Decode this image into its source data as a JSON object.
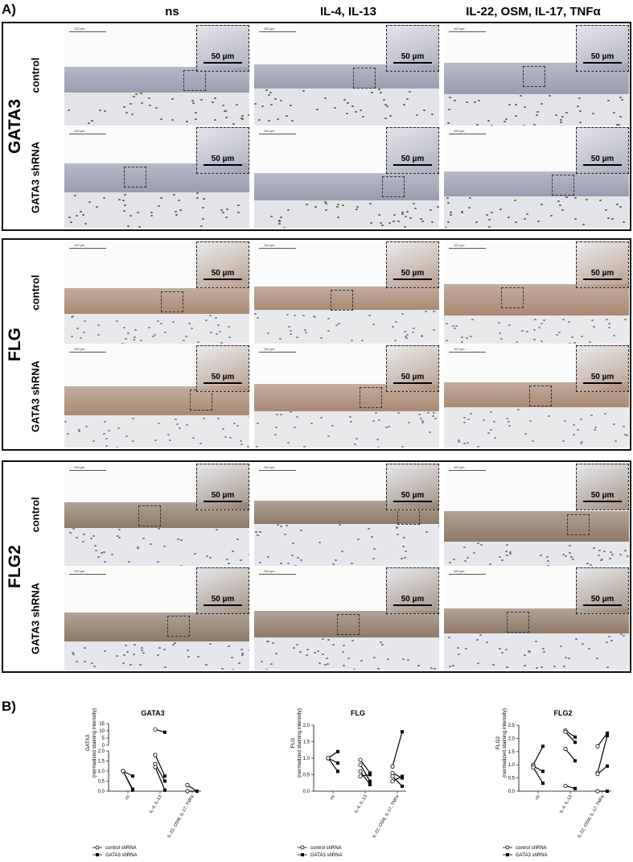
{
  "figure": {
    "panel_a_label": "A)",
    "panel_b_label": "B)",
    "columns": [
      "ns",
      "IL-4, IL-13",
      "IL-22, OSM, IL-17, TNFα"
    ],
    "rows": [
      "control",
      "GATA3 shRNA"
    ],
    "markers": [
      "GATA3",
      "FLG",
      "FLG2"
    ],
    "inset_scale": "50 µm",
    "overview_scale": "100 µm",
    "stain_colors": {
      "GATA3": {
        "strat": "#9a9cb0",
        "derm": "#e3e4ea",
        "nuc": "#6b6040"
      },
      "FLG": {
        "strat": "#a98a72",
        "derm": "#e9e9ec",
        "nuc": "#7d8099"
      },
      "FLG2": {
        "strat": "#8f7a66",
        "derm": "#e6e7ec",
        "nuc": "#6f7288"
      }
    }
  },
  "chart_data": [
    {
      "type": "scatter",
      "title": "GATA3",
      "ylabel": "GATA3 (normalized staining intensity)",
      "categories": [
        "ns",
        "IL-4, IL-13",
        "IL-22, OSM, IL-17, TNFα"
      ],
      "broken_axis": true,
      "ylim_lower": [
        0,
        2.0
      ],
      "yticks_lower": [
        "0.0",
        "0.5",
        "1.0",
        "1.5",
        "2.0"
      ],
      "ylim_upper": [
        0,
        15
      ],
      "yticks_upper": [
        "0",
        "5",
        "10",
        "15"
      ],
      "pairs": [
        {
          "category": "ns",
          "control": 1.0,
          "gata3": 0.75
        },
        {
          "category": "ns",
          "control": 1.0,
          "gata3": 0.1
        },
        {
          "category": "ns",
          "control": 1.0,
          "gata3": 0.05
        },
        {
          "category": "IL-4, IL-13",
          "control": 11.0,
          "gata3": 9.0
        },
        {
          "category": "IL-4, IL-13",
          "control": 1.8,
          "gata3": 0.75
        },
        {
          "category": "IL-4, IL-13",
          "control": 1.35,
          "gata3": 0.5
        },
        {
          "category": "IL-4, IL-13",
          "control": 1.2,
          "gata3": 0.05
        },
        {
          "category": "IL-22, OSM, IL-17, TNFα",
          "control": 0.3,
          "gata3": 0.0
        },
        {
          "category": "IL-22, OSM, IL-17, TNFα",
          "control": 0.0,
          "gata3": 0.0
        }
      ],
      "legend": [
        "control shRNA",
        "GATA3 shRNA"
      ]
    },
    {
      "type": "scatter",
      "title": "FLG",
      "ylabel": "FLG (normalized staining intensity)",
      "categories": [
        "ns",
        "IL-4, IL-13",
        "IL-22, OSM, IL-17, TNFα"
      ],
      "ylim": [
        0,
        2.0
      ],
      "yticks": [
        "0.0",
        "0.5",
        "1.0",
        "1.5",
        "2.0"
      ],
      "pairs": [
        {
          "category": "ns",
          "control": 1.0,
          "gata3": 1.2
        },
        {
          "category": "ns",
          "control": 1.0,
          "gata3": 0.85
        },
        {
          "category": "ns",
          "control": 1.0,
          "gata3": 0.6
        },
        {
          "category": "IL-4, IL-13",
          "control": 0.95,
          "gata3": 0.55
        },
        {
          "category": "IL-4, IL-13",
          "control": 0.8,
          "gata3": 0.3
        },
        {
          "category": "IL-4, IL-13",
          "control": 0.6,
          "gata3": 0.2
        },
        {
          "category": "IL-4, IL-13",
          "control": 0.45,
          "gata3": 0.5
        },
        {
          "category": "IL-22, OSM, IL-17, TNFα",
          "control": 0.75,
          "gata3": 1.8
        },
        {
          "category": "IL-22, OSM, IL-17, TNFα",
          "control": 0.55,
          "gata3": 0.4
        },
        {
          "category": "IL-22, OSM, IL-17, TNFα",
          "control": 0.45,
          "gata3": 0.15
        },
        {
          "category": "IL-22, OSM, IL-17, TNFα",
          "control": 0.3,
          "gata3": 0.45
        }
      ],
      "legend": [
        "control shRNA",
        "GATA3 shRNA"
      ]
    },
    {
      "type": "scatter",
      "title": "FLG2",
      "ylabel": "FLG2 (normalized staining intensity)",
      "categories": [
        "ns",
        "IL-4, IL-13",
        "IL-22, OSM, IL-17, TNFα"
      ],
      "ylim": [
        0,
        2.5
      ],
      "yticks": [
        "0.0",
        "0.5",
        "1.0",
        "1.5",
        "2.0",
        "2.5"
      ],
      "pairs": [
        {
          "category": "ns",
          "control": 1.0,
          "gata3": 1.7
        },
        {
          "category": "ns",
          "control": 0.95,
          "gata3": 0.75
        },
        {
          "category": "ns",
          "control": 0.9,
          "gata3": 0.3
        },
        {
          "category": "IL-4, IL-13",
          "control": 2.3,
          "gata3": 2.05
        },
        {
          "category": "IL-4, IL-13",
          "control": 2.25,
          "gata3": 1.85
        },
        {
          "category": "IL-4, IL-13",
          "control": 1.6,
          "gata3": 1.15
        },
        {
          "category": "IL-4, IL-13",
          "control": 0.2,
          "gata3": 0.1
        },
        {
          "category": "IL-22, OSM, IL-17, TNFα",
          "control": 1.7,
          "gata3": 2.2
        },
        {
          "category": "IL-22, OSM, IL-17, TNFα",
          "control": 0.7,
          "gata3": 2.1
        },
        {
          "category": "IL-22, OSM, IL-17, TNFα",
          "control": 0.65,
          "gata3": 0.95
        },
        {
          "category": "IL-22, OSM, IL-17, TNFα",
          "control": 0.0,
          "gata3": 0.0
        }
      ],
      "legend": [
        "control shRNA",
        "GATA3 shRNA"
      ]
    }
  ]
}
